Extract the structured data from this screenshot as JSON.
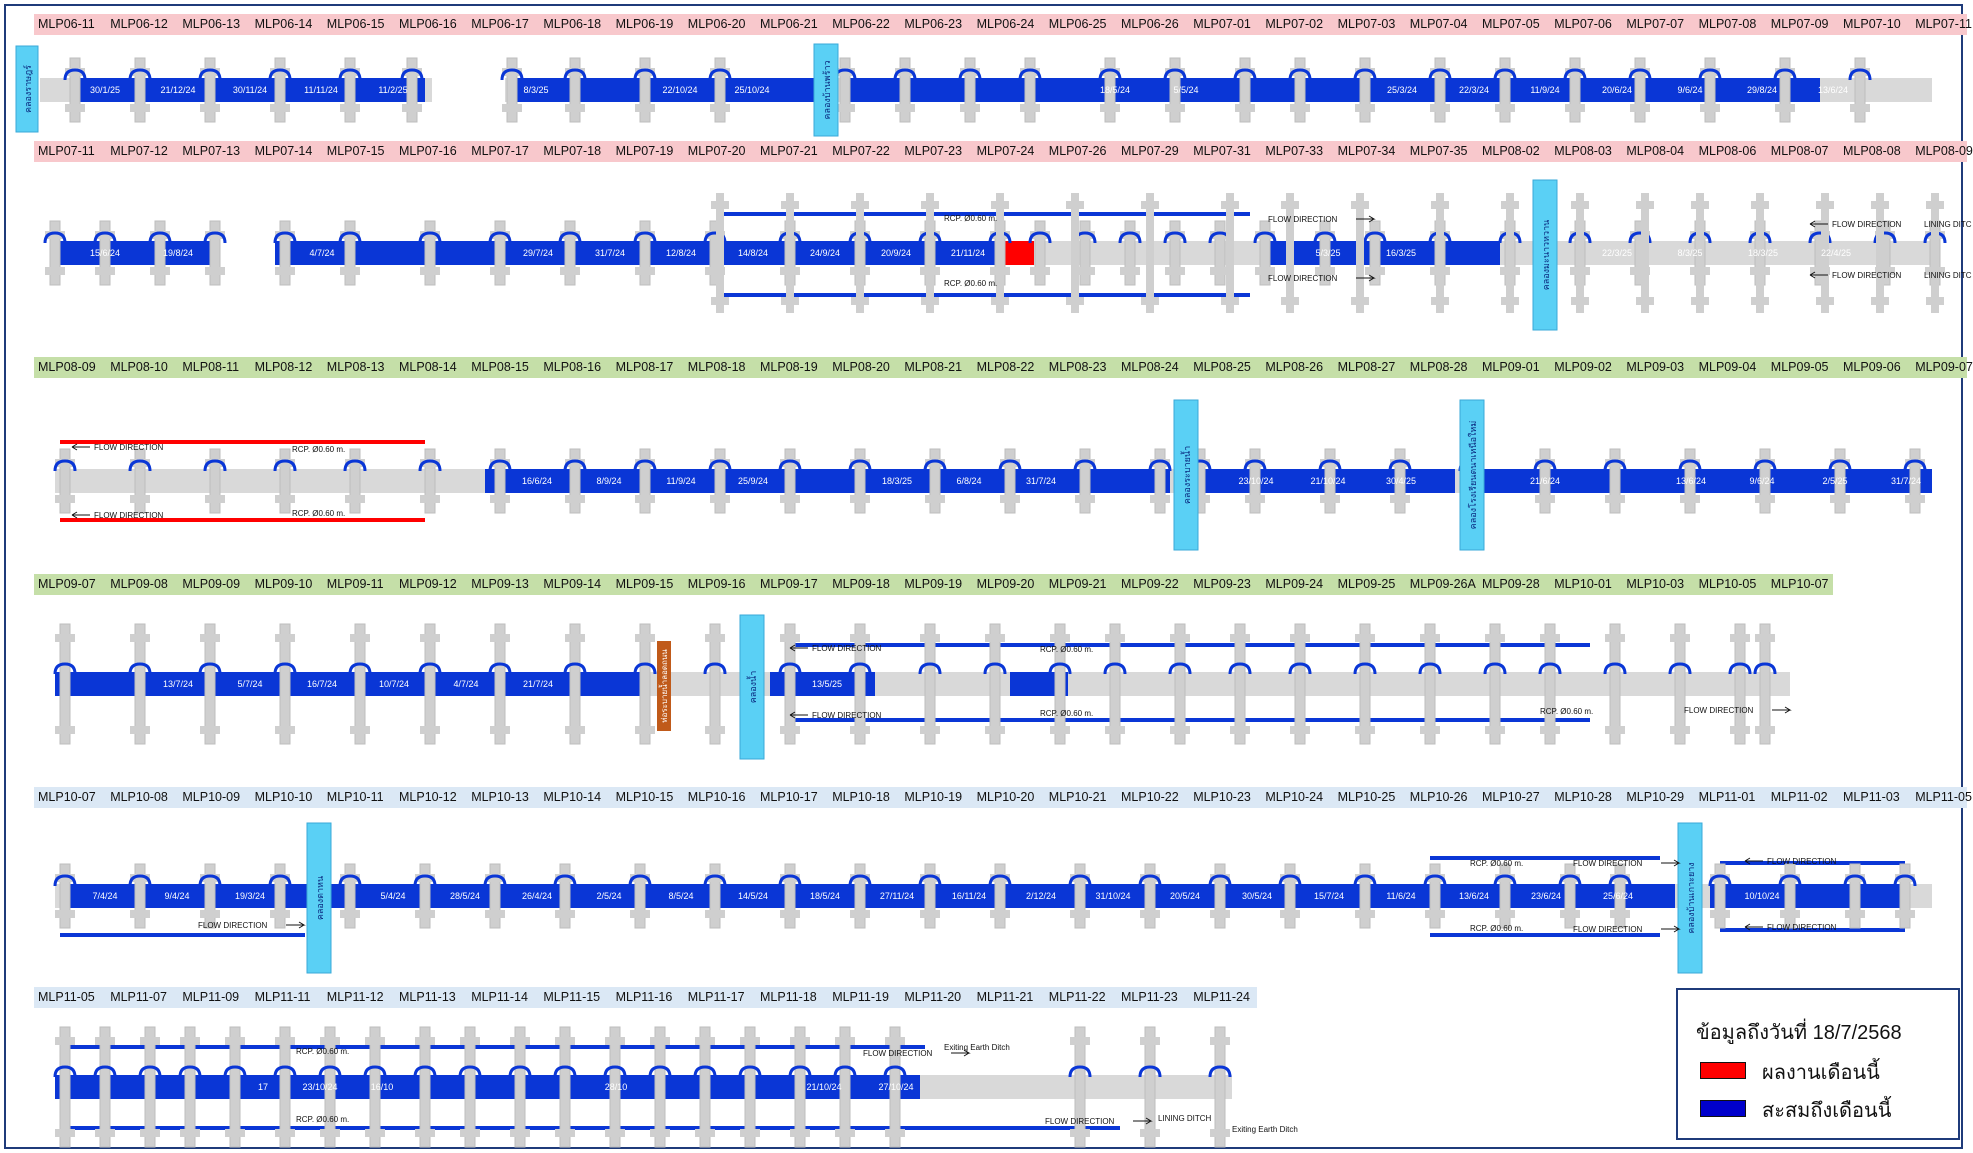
{
  "legend": {
    "title": "ข้อมูลถึงวันที่ 18/7/2568",
    "items": [
      {
        "label": "ผลงานเดือนนี้",
        "color": "#ff0000"
      },
      {
        "label": "สะสมถึงเดือนนี้",
        "color": "#0000cc"
      }
    ]
  },
  "colors": {
    "done": "#0a36d6",
    "month": "#ff0000",
    "pending": "#d9d9d9",
    "canal": "#5ad0f5",
    "culvert": "#c05a1a",
    "row_pink": "#f8c8cc",
    "row_green": "#c5dfa8",
    "row_blue": "#dbe8f5"
  },
  "rows": [
    {
      "bg": "pink",
      "stations": [
        "MLP06-11",
        "MLP06-12",
        "MLP06-13",
        "MLP06-14",
        "MLP06-15",
        "MLP06-16",
        "MLP06-17",
        "MLP06-18",
        "MLP06-19",
        "MLP06-20",
        "MLP06-21",
        "MLP06-22",
        "MLP06-23",
        "MLP06-24",
        "MLP06-25",
        "MLP06-26",
        "MLP07-01",
        "MLP07-02",
        "MLP07-03",
        "MLP07-04",
        "MLP07-05",
        "MLP07-06",
        "MLP07-07",
        "MLP07-08",
        "MLP07-09",
        "MLP07-10",
        "MLP07-11"
      ],
      "dates": [
        "30/1/25",
        "21/12/24",
        "30/11/24",
        "11/11/24",
        "11/2/25",
        "",
        "",
        "8/3/25",
        "",
        "22/10/24",
        "25/10/24",
        "",
        "",
        "",
        "",
        "18/5/24",
        "5/5/24",
        "",
        "",
        "25/3/24",
        "22/3/24",
        "11/9/24",
        "20/6/24",
        "9/6/24",
        "29/8/24",
        "13/6/24"
      ],
      "canals": [
        "คลองราษฎร์",
        "คลองบ้านพร้าว"
      ]
    },
    {
      "bg": "pink",
      "stations": [
        "MLP07-11",
        "MLP07-12",
        "MLP07-13",
        "MLP07-14",
        "MLP07-15",
        "MLP07-16",
        "MLP07-17",
        "MLP07-18",
        "MLP07-19",
        "MLP07-20",
        "MLP07-21",
        "MLP07-22",
        "MLP07-23",
        "MLP07-24",
        "MLP07-26",
        "MLP07-29",
        "MLP07-31",
        "MLP07-33",
        "MLP07-34",
        "MLP07-35",
        "MLP08-02",
        "MLP08-03",
        "MLP08-04",
        "MLP08-06",
        "MLP08-07",
        "MLP08-08",
        "MLP08-09"
      ],
      "dates": [
        "15/6/24",
        "19/8/24",
        "",
        "4/7/24",
        "",
        "",
        "29/7/24",
        "31/7/24",
        "12/8/24",
        "14/8/24",
        "24/9/24",
        "20/9/24",
        "21/11/24",
        "",
        "",
        "",
        "",
        "",
        "5/3/25",
        "16/3/25",
        "",
        "22/3/25",
        "8/3/25",
        "18/3/25",
        "22/4/25"
      ],
      "canals": [
        "คลองมะนาวหวาน"
      ],
      "pipe_labels": [
        "RCP. Ø0.60 m.",
        "RCP. Ø0.60 m."
      ],
      "flow_labels": [
        "FLOW DIRECTION",
        "FLOW DIRECTION",
        "FLOW DIRECTION",
        "FLOW DIRECTION"
      ],
      "lining_labels": [
        "LINING DITC",
        "LINING DITC"
      ]
    },
    {
      "bg": "green",
      "stations": [
        "MLP08-09",
        "MLP08-10",
        "MLP08-11",
        "MLP08-12",
        "MLP08-13",
        "MLP08-14",
        "MLP08-15",
        "MLP08-16",
        "MLP08-17",
        "MLP08-18",
        "MLP08-19",
        "MLP08-20",
        "MLP08-21",
        "MLP08-22",
        "MLP08-23",
        "MLP08-24",
        "MLP08-25",
        "MLP08-26",
        "MLP08-27",
        "MLP08-28",
        "MLP09-01",
        "MLP09-02",
        "MLP09-03",
        "MLP09-04",
        "MLP09-05",
        "MLP09-06",
        "MLP09-07"
      ],
      "dates": [
        "16/6/24",
        "8/9/24",
        "11/9/24",
        "25/9/24",
        "",
        "18/3/25",
        "6/8/24",
        "31/7/24",
        "",
        "23/10/24",
        "21/10/24",
        "30/4/25",
        "21/6/24",
        "",
        "13/6/24",
        "9/6/24",
        "2/5/25",
        "31/7/24"
      ],
      "canals": [
        "คลองระบายน้ำ",
        "คลองโรงเรียนตนาเหนือใหม่"
      ],
      "pipe_labels": [
        "RCP. Ø0.60 m.",
        "RCP. Ø0.60 m."
      ],
      "flow_labels": [
        "FLOW DIRECTION",
        "FLOW DIRECTION"
      ]
    },
    {
      "bg": "green",
      "stations": [
        "MLP09-07",
        "MLP09-08",
        "MLP09-09",
        "MLP09-10",
        "MLP09-11",
        "MLP09-12",
        "MLP09-13",
        "MLP09-14",
        "MLP09-15",
        "MLP09-16",
        "MLP09-17",
        "MLP09-18",
        "MLP09-19",
        "MLP09-20",
        "MLP09-21",
        "MLP09-22",
        "MLP09-23",
        "MLP09-24",
        "MLP09-25",
        "MLP09-26A",
        "MLP09-28",
        "MLP10-01",
        "MLP10-03",
        "MLP10-05",
        "MLP10-07"
      ],
      "dates": [
        "13/7/24",
        "5/7/24",
        "16/7/24",
        "10/7/24",
        "4/7/24",
        "21/7/24",
        "13/5/25"
      ],
      "canals": [
        "คลองน้ำ"
      ],
      "culvert": "ท่อระบายน้ำลอดถนน",
      "pipe_labels": [
        "RCP. Ø0.60 m.",
        "RCP. Ø0.60 m.",
        "RCP. Ø0.60 m."
      ],
      "flow_labels": [
        "FLOW DIRECTION",
        "FLOW DIRECTION",
        "FLOW DIRECTION"
      ]
    },
    {
      "bg": "blue",
      "stations": [
        "MLP10-07",
        "MLP10-08",
        "MLP10-09",
        "MLP10-10",
        "MLP10-11",
        "MLP10-12",
        "MLP10-13",
        "MLP10-14",
        "MLP10-15",
        "MLP10-16",
        "MLP10-17",
        "MLP10-18",
        "MLP10-19",
        "MLP10-20",
        "MLP10-21",
        "MLP10-22",
        "MLP10-23",
        "MLP10-24",
        "MLP10-25",
        "MLP10-26",
        "MLP10-27",
        "MLP10-28",
        "MLP10-29",
        "MLP11-01",
        "MLP11-02",
        "MLP11-03",
        "MLP11-05"
      ],
      "dates": [
        "7/4/24",
        "9/4/24",
        "19/3/24",
        "",
        "5/4/24",
        "28/5/24",
        "26/4/24",
        "2/5/24",
        "8/5/24",
        "14/5/24",
        "18/5/24",
        "27/11/24",
        "16/11/24",
        "2/12/24",
        "31/10/24",
        "20/5/24",
        "30/5/24",
        "15/7/24",
        "11/6/24",
        "13/6/24",
        "23/6/24",
        "25/6/24",
        "",
        "10/10/24"
      ],
      "canals": [
        "คลองตาหน",
        "คลองบ้านเกาะยาง"
      ],
      "pipe_labels": [
        "RCP. Ø0.60 m.",
        "RCP. Ø0.60 m."
      ],
      "flow_labels": [
        "FLOW DIRECTION",
        "FLOW DIRECTION",
        "FLOW DIRECTION",
        "FLOW DIRECTION",
        "FLOW DIRECTION"
      ]
    },
    {
      "bg": "blue",
      "stations": [
        "MLP11-05",
        "MLP11-07",
        "MLP11-09",
        "MLP11-11",
        "MLP11-12",
        "MLP11-13",
        "MLP11-14",
        "MLP11-15",
        "MLP11-16",
        "MLP11-17",
        "MLP11-18",
        "MLP11-19",
        "MLP11-20",
        "MLP11-21",
        "MLP11-22",
        "MLP11-23",
        "MLP11-24"
      ],
      "dates": [
        "17",
        "23/10/24",
        "16/10",
        "28/10",
        "21/10/24",
        "27/10/24"
      ],
      "pipe_labels": [
        "RCP. Ø0.60 m.",
        "RCP. Ø0.60 m."
      ],
      "flow_labels": [
        "FLOW DIRECTION",
        "FLOW DIRECTION"
      ],
      "ditch_labels": [
        "Exiting Earth Ditch",
        "LINING DITCH",
        "Exiting Earth Ditch"
      ]
    }
  ]
}
